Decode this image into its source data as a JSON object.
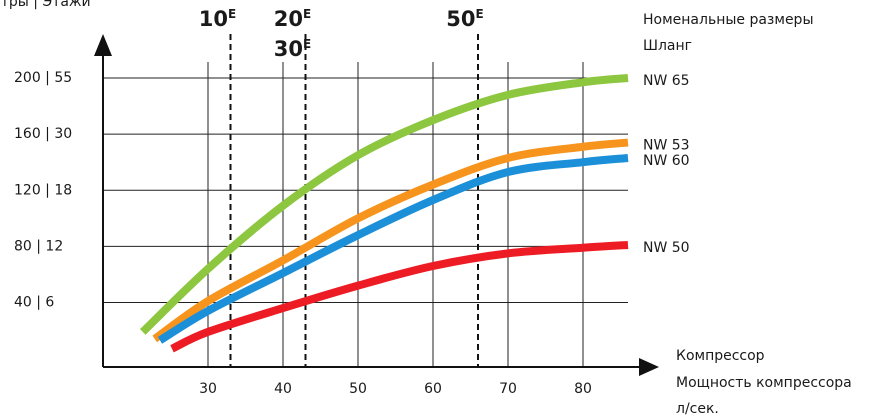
{
  "chart_data": {
    "type": "line",
    "y_axis_label": "Метры | Этажи",
    "legend_title": [
      "Номенальные размеры",
      "Шланг"
    ],
    "x_axis_label": [
      "Компрессор",
      "Мощность компрессора",
      "л/сек."
    ],
    "xlim": [
      16,
      88
    ],
    "ylim": [
      -6,
      210
    ],
    "xticks": [
      30,
      40,
      50,
      60,
      70,
      80
    ],
    "yticks": [
      {
        "value": 40,
        "label": "40 | 6"
      },
      {
        "value": 80,
        "label": "80 | 12"
      },
      {
        "value": 120,
        "label": "120 | 18"
      },
      {
        "value": 160,
        "label": "160 | 30"
      },
      {
        "value": 200,
        "label": "200 | 55"
      }
    ],
    "grid": true,
    "markers": [
      {
        "x": 33,
        "labels": [
          {
            "text": "10",
            "sup": "E"
          }
        ]
      },
      {
        "x": 43,
        "labels": [
          {
            "text": "20",
            "sup": "E"
          },
          {
            "text": "30",
            "sup": "E"
          }
        ]
      },
      {
        "x": 66,
        "labels": [
          {
            "text": "50",
            "sup": "E"
          }
        ]
      }
    ],
    "series": [
      {
        "name": "NW 65",
        "color": "#8dc63f",
        "x": [
          21.3,
          30,
          40,
          50,
          60,
          70,
          80,
          86
        ],
        "values": [
          19,
          64,
          109,
          145,
          170,
          188,
          197,
          200
        ]
      },
      {
        "name": "NW 53",
        "color": "#f7941d",
        "x": [
          22.9,
          30,
          40,
          50,
          60,
          70,
          80,
          86
        ],
        "values": [
          14,
          41,
          70,
          100,
          124,
          143,
          151,
          154
        ]
      },
      {
        "name": "NW 60",
        "color": "#1b8fd8",
        "x": [
          23.6,
          30,
          40,
          50,
          60,
          70,
          80,
          86
        ],
        "values": [
          13,
          34,
          61,
          88,
          113,
          133,
          140,
          143
        ]
      },
      {
        "name": "NW 50",
        "color": "#ed1c24",
        "x": [
          25.2,
          30,
          40,
          50,
          60,
          70,
          80,
          86
        ],
        "values": [
          7,
          19,
          36,
          52,
          66,
          75,
          79,
          81
        ]
      }
    ]
  }
}
